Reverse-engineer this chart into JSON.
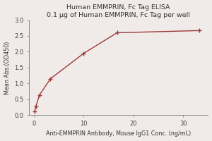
{
  "title": "Human EMMPRIN, Fc Tag ELISA",
  "subtitle": "0.1 μg of Human EMMPRIN, Fc Tag per well",
  "xlabel": "Anti-EMMPRIN Antibody, Mouse IgG1 Conc. (ng/mL)",
  "ylabel": "Mean Abs.(OD450)",
  "x_points": [
    0.123,
    0.37,
    1.11,
    3.33,
    10.0,
    16.7,
    33.3
  ],
  "y_points": [
    0.112,
    0.27,
    0.635,
    1.15,
    1.95,
    2.6,
    2.67
  ],
  "ylim": [
    0.0,
    3.0
  ],
  "xlim": [
    -1.0,
    35.0
  ],
  "yticks": [
    0.0,
    0.5,
    1.0,
    1.5,
    2.0,
    2.5,
    3.0
  ],
  "xticks": [
    0,
    10,
    20,
    30
  ],
  "curve_color": "#9b3a3a",
  "point_color": "#9b3a3a",
  "background_color": "#f0ebe8",
  "title_fontsize": 6.8,
  "subtitle_fontsize": 6.0,
  "axis_label_fontsize": 5.8,
  "tick_fontsize": 6.0
}
